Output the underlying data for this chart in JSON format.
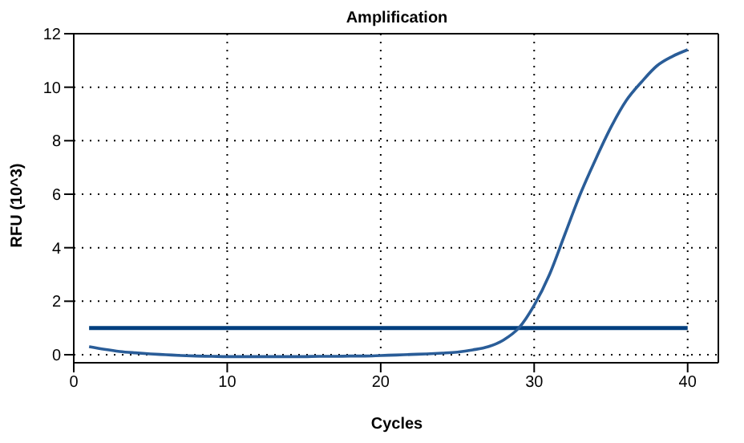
{
  "chart_data": {
    "type": "line",
    "title": "Amplification",
    "xlabel": "Cycles",
    "ylabel": "RFU (10^3)",
    "x": [
      1,
      2,
      3,
      4,
      5,
      6,
      7,
      8,
      9,
      10,
      11,
      12,
      13,
      14,
      15,
      16,
      17,
      18,
      19,
      20,
      21,
      22,
      23,
      24,
      25,
      26,
      27,
      28,
      29,
      30,
      31,
      32,
      33,
      34,
      35,
      36,
      37,
      38,
      39,
      40
    ],
    "series": [
      {
        "color": "#2a5d98",
        "values": [
          0.3,
          0.2,
          0.12,
          0.07,
          0.03,
          0,
          -0.03,
          -0.05,
          -0.06,
          -0.07,
          -0.07,
          -0.07,
          -0.07,
          -0.07,
          -0.07,
          -0.06,
          -0.06,
          -0.05,
          -0.05,
          -0.03,
          -0.01,
          0.01,
          0.03,
          0.06,
          0.1,
          0.18,
          0.3,
          0.55,
          1,
          1.85,
          3,
          4.5,
          6,
          7.3,
          8.5,
          9.5,
          10.2,
          10.8,
          11.15,
          11.4
        ]
      }
    ],
    "xlim": [
      0,
      42
    ],
    "xticks": [
      0,
      10,
      20,
      30,
      40
    ],
    "ylim": [
      -0.3,
      12
    ],
    "yticks": [
      0,
      2,
      4,
      6,
      8,
      10,
      12
    ],
    "ref_lines": [
      {
        "axis": "y",
        "value": 1,
        "color": "#003f7f"
      }
    ],
    "grid": true,
    "marker": "none",
    "line_style": "solid"
  }
}
